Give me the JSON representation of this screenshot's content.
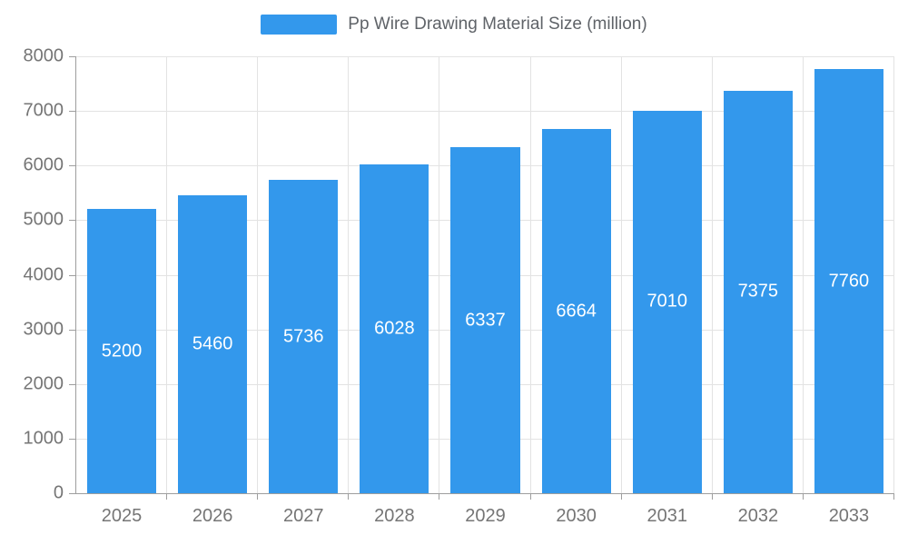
{
  "legend": {
    "label": "Pp Wire Drawing Material Size (million)"
  },
  "chart_data": {
    "type": "bar",
    "title": "Pp Wire Drawing Material Size (million)",
    "categories": [
      "2025",
      "2026",
      "2027",
      "2028",
      "2029",
      "2030",
      "2031",
      "2032",
      "2033"
    ],
    "values": [
      5200,
      5460,
      5736,
      6028,
      6337,
      6664,
      7010,
      7375,
      7760
    ],
    "xlabel": "",
    "ylabel": "",
    "ylim": [
      0,
      8000
    ],
    "ytick_step": 1000,
    "ytick_labels": [
      "0",
      "1000",
      "2000",
      "3000",
      "4000",
      "5000",
      "6000",
      "7000",
      "8000"
    ],
    "grid": true,
    "legend_position": "top",
    "colors": {
      "bar": "#3398EC",
      "bar_value_label": "#ffffff",
      "axis_text": "#757575",
      "grid_line": "#e3e3e3",
      "axis_line": "#9e9e9e",
      "legend_text": "#5f6368"
    }
  }
}
